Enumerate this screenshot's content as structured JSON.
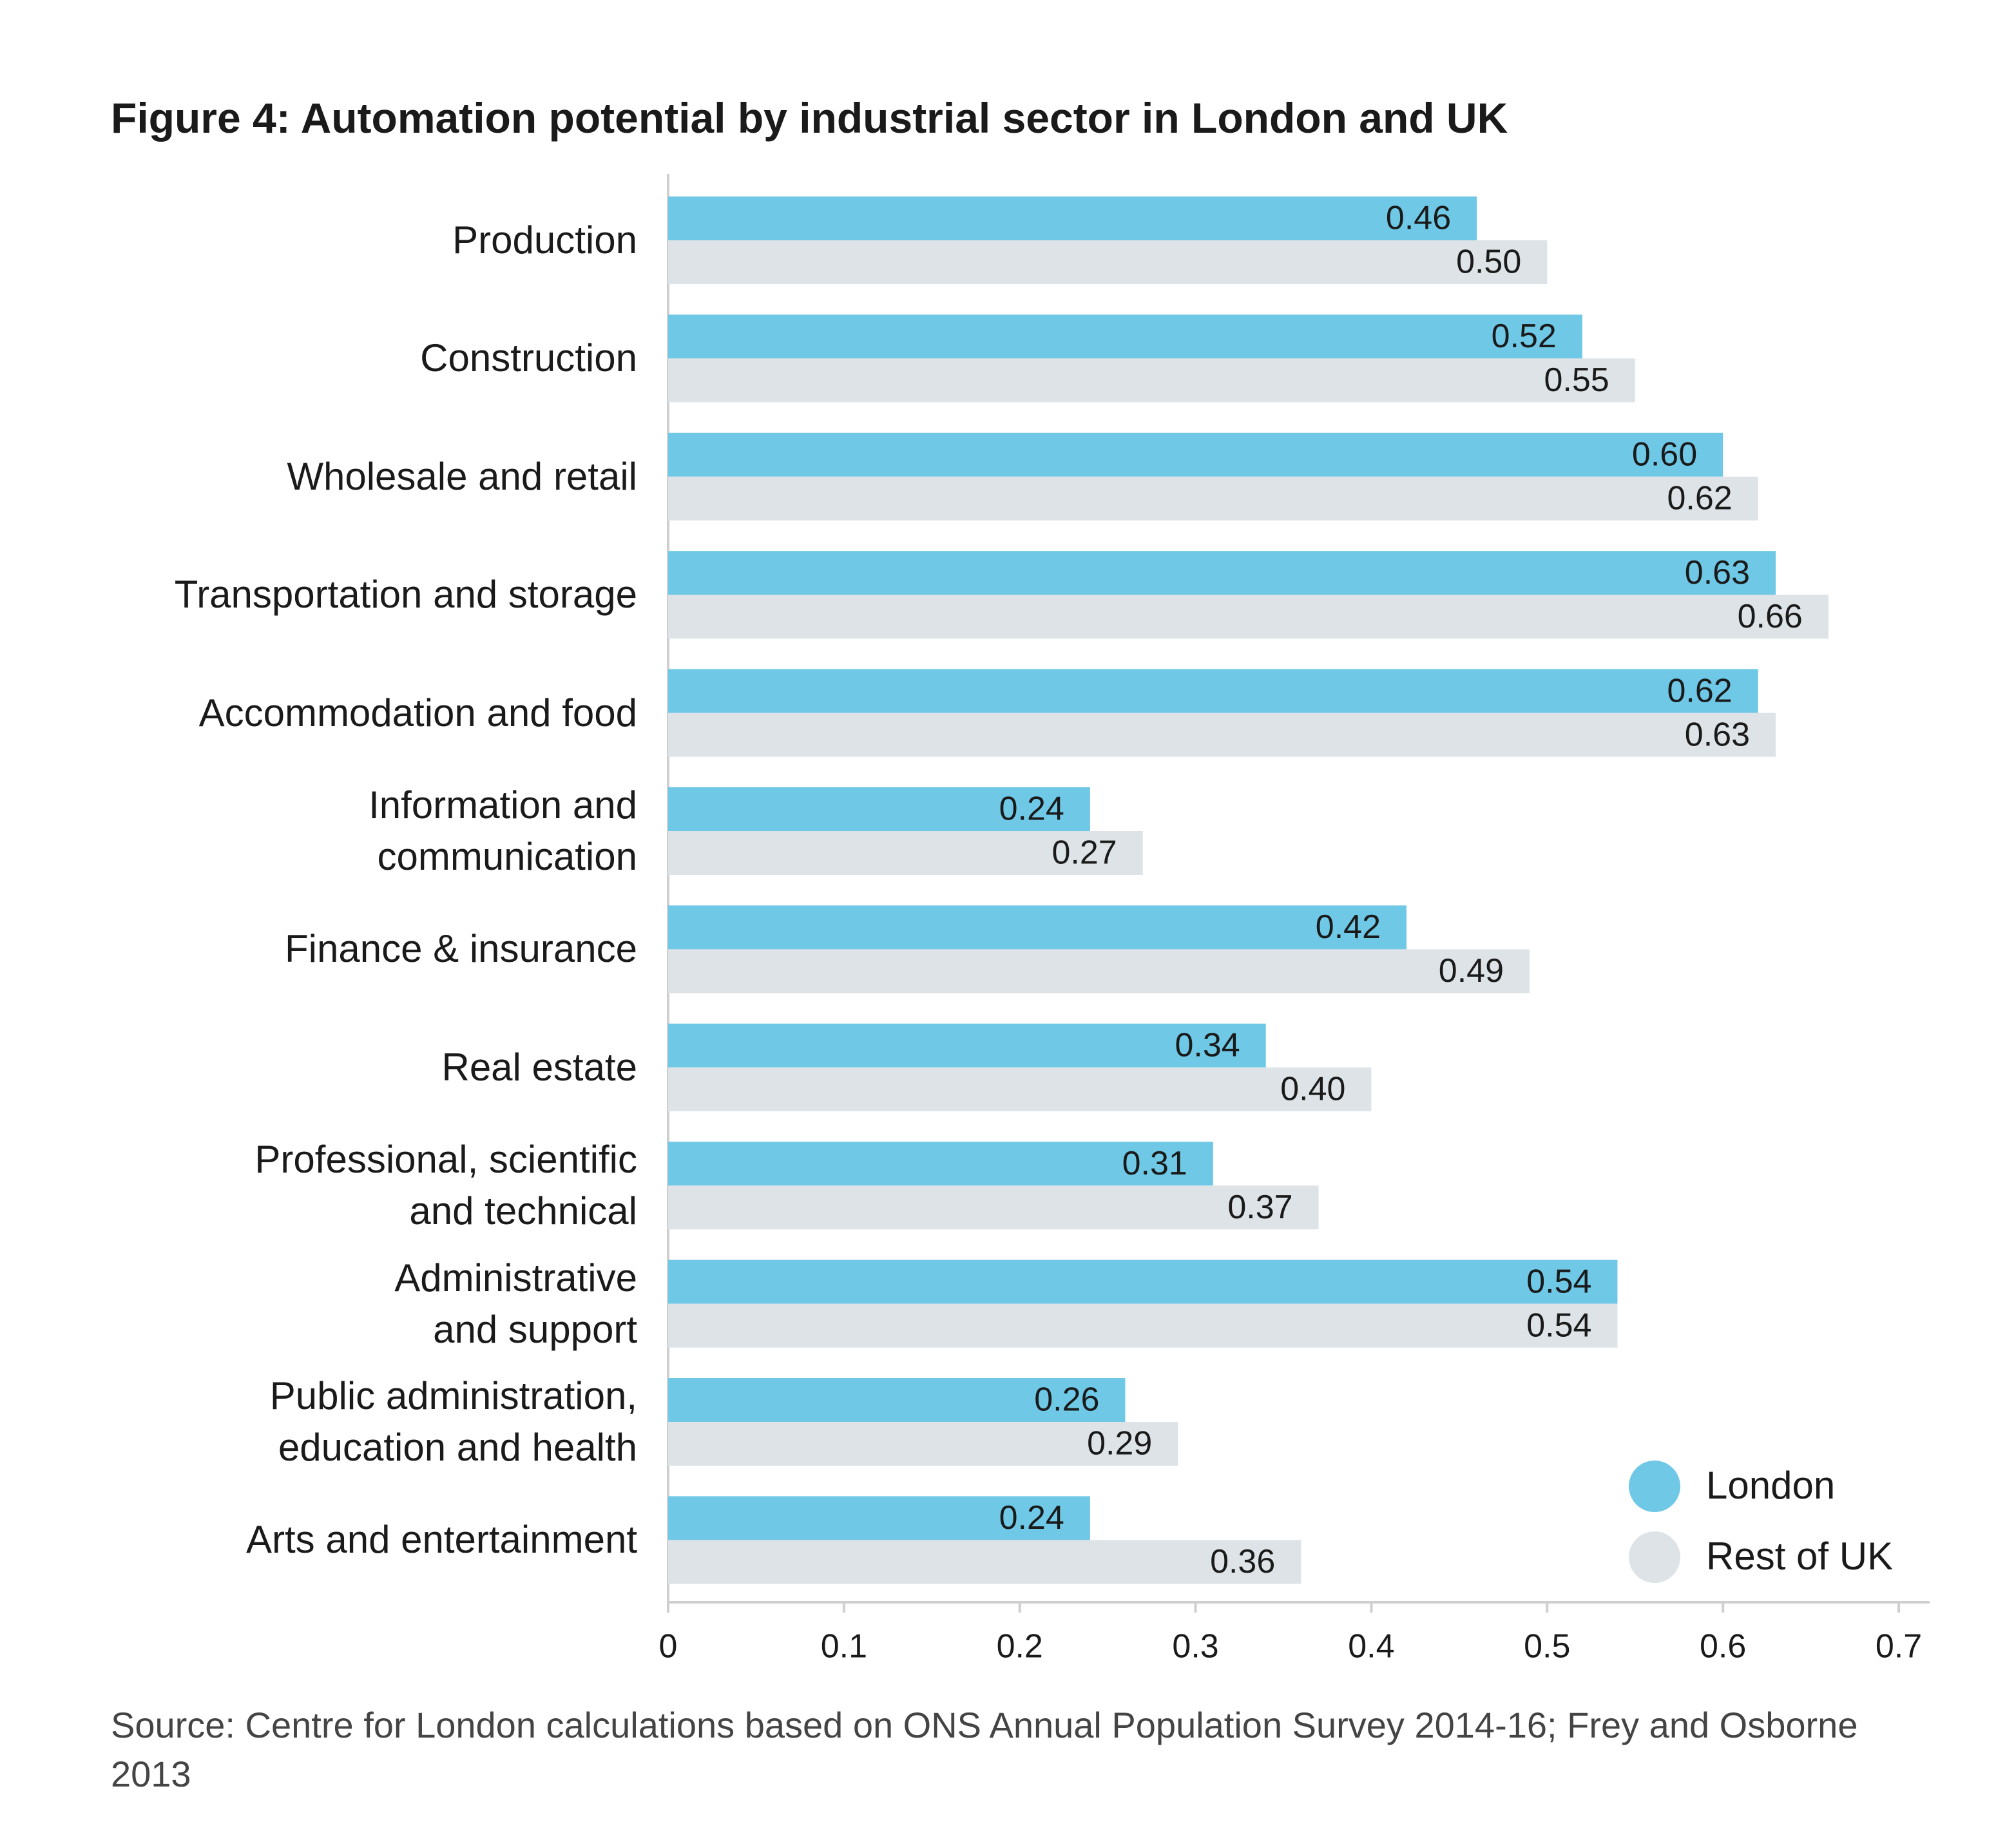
{
  "chart_data": {
    "type": "barh",
    "title": "Figure 4: Automation potential by industrial sector in London and UK",
    "categories": [
      "Production",
      "Construction",
      "Wholesale and retail",
      "Transportation and storage",
      "Accommodation and food",
      "Information and\ncommunication",
      "Finance & insurance",
      "Real estate",
      "Professional, scientific\nand technical",
      "Administrative\nand support",
      "Public administration,\neducation and health",
      "Arts and entertainment"
    ],
    "series": [
      {
        "name": "London",
        "color": "#6ec8e6",
        "values": [
          0.46,
          0.52,
          0.6,
          0.63,
          0.62,
          0.24,
          0.42,
          0.34,
          0.31,
          0.54,
          0.26,
          0.24
        ],
        "value_labels": [
          "0.46",
          "0.52",
          "0.60",
          "0.63",
          "0.62",
          "0.24",
          "0.42",
          "0.34",
          "0.31",
          "0.54",
          "0.26",
          "0.24"
        ]
      },
      {
        "name": "Rest of UK",
        "color": "#dde3e6",
        "values": [
          0.5,
          0.55,
          0.62,
          0.66,
          0.63,
          0.27,
          0.49,
          0.4,
          0.37,
          0.54,
          0.29,
          0.36
        ],
        "value_labels": [
          "0.50",
          "0.55",
          "0.62",
          "0.66",
          "0.63",
          "0.27",
          "0.49",
          "0.40",
          "0.37",
          "0.54",
          "0.29",
          "0.36"
        ]
      }
    ],
    "xlim": [
      0,
      0.7
    ],
    "xticks": [
      0,
      0.1,
      0.2,
      0.3,
      0.4,
      0.5,
      0.6,
      0.7
    ],
    "grid": false,
    "legend": "lower right",
    "source": "Source: Centre for London calculations based on ONS Annual Population Survey 2014-16; Frey and Osborne 2013"
  }
}
